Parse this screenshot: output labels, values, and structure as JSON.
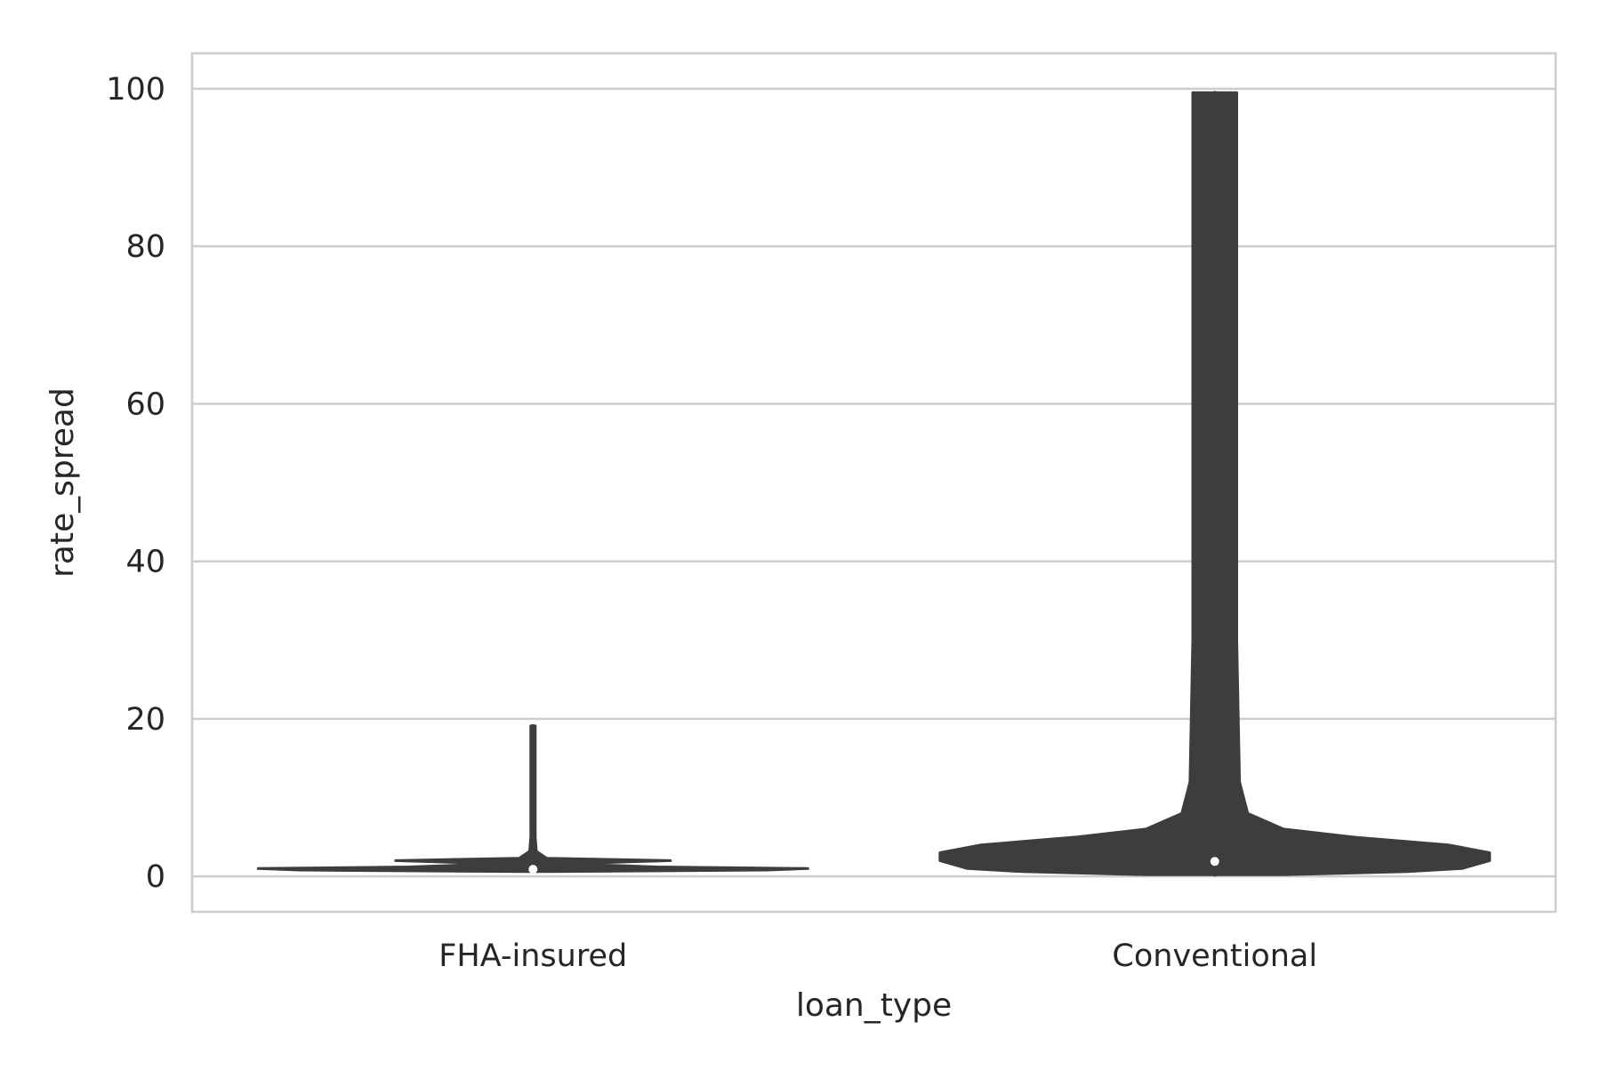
{
  "chart_data": {
    "type": "violin",
    "title": "",
    "xlabel": "loan_type",
    "ylabel": "rate_spread",
    "categories": [
      "FHA-insured",
      "Conventional"
    ],
    "ylim": [
      -4.5,
      104.5
    ],
    "yticks": [
      0,
      20,
      40,
      60,
      80,
      100
    ],
    "grid": true,
    "legend": "none",
    "colors": {
      "body": "#3d3d3d",
      "median": "#ffffff",
      "grid": "#cccccc",
      "frame": "#cccccc"
    },
    "violins": [
      {
        "category": "FHA-insured",
        "min": 0.6,
        "max": 19.1,
        "median": 0.9,
        "q1": 0.8,
        "q3": 1.1,
        "profile": [
          [
            0.6,
            0.03
          ],
          [
            0.8,
            0.85
          ],
          [
            1.0,
            1.0
          ],
          [
            1.2,
            0.45
          ],
          [
            1.6,
            0.12
          ],
          [
            2.0,
            0.5
          ],
          [
            2.3,
            0.05
          ],
          [
            3.0,
            0.02
          ],
          [
            3.2,
            0.012
          ],
          [
            5.0,
            0.006
          ],
          [
            7.0,
            0.005
          ],
          [
            9.0,
            0.004
          ],
          [
            19.1,
            0.004
          ]
        ]
      },
      {
        "category": "Conventional",
        "min": 0.2,
        "max": 99.5,
        "median": 1.9,
        "q1": 1.0,
        "q3": 3.2,
        "profile": [
          [
            0.2,
            0.25
          ],
          [
            0.6,
            0.7
          ],
          [
            1.0,
            0.9
          ],
          [
            2.0,
            1.0
          ],
          [
            3.0,
            1.0
          ],
          [
            4.0,
            0.85
          ],
          [
            5.0,
            0.5
          ],
          [
            6.0,
            0.25
          ],
          [
            8.0,
            0.12
          ],
          [
            12.0,
            0.09
          ],
          [
            30.0,
            0.08
          ],
          [
            99.5,
            0.08
          ]
        ]
      }
    ]
  }
}
